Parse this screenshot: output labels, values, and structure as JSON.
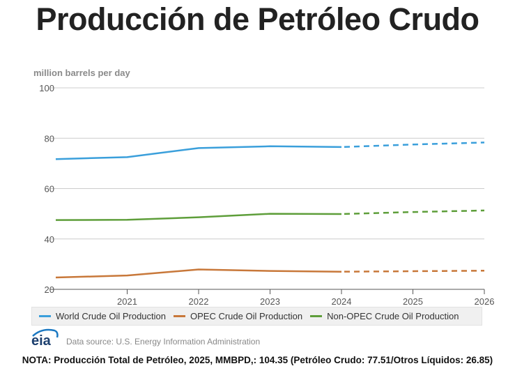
{
  "page": {
    "title": "Producción de Petróleo Crudo",
    "note": "NOTA: Producción Total de Petróleo, 2025, MMBPD,: 104.35 (Petróleo Crudo: 77.51/Otros Líquidos: 26.85)",
    "source": "Data source: U.S. Energy Information Administration",
    "logo_text": "eia"
  },
  "chart_data": {
    "type": "line",
    "title": "Producción de Petróleo Crudo",
    "xlabel": "",
    "ylabel": "million barrels per day",
    "x": [
      2020,
      2021,
      2022,
      2023,
      2024,
      2025,
      2026
    ],
    "xlim": [
      2020,
      2026
    ],
    "x_ticks": [
      "2021",
      "2022",
      "2023",
      "2024",
      "2025",
      "2026"
    ],
    "ylim": [
      20,
      100
    ],
    "y_ticks": [
      "20",
      "40",
      "60",
      "80",
      "100"
    ],
    "grid": true,
    "forecast_start": 2024,
    "legend_position": "bottom",
    "series": [
      {
        "name": "World Crude Oil Production",
        "color": "#3a9fdb",
        "values": [
          71.7,
          72.5,
          76.1,
          76.8,
          76.5,
          77.5,
          78.3
        ]
      },
      {
        "name": "OPEC Crude Oil Production",
        "color": "#c8783a",
        "values": [
          24.7,
          25.5,
          27.9,
          27.3,
          27.0,
          27.2,
          27.4
        ]
      },
      {
        "name": "Non-OPEC Crude Oil Production",
        "color": "#5e9e3a",
        "values": [
          47.5,
          47.6,
          48.6,
          50.0,
          49.9,
          50.7,
          51.3
        ]
      }
    ]
  }
}
